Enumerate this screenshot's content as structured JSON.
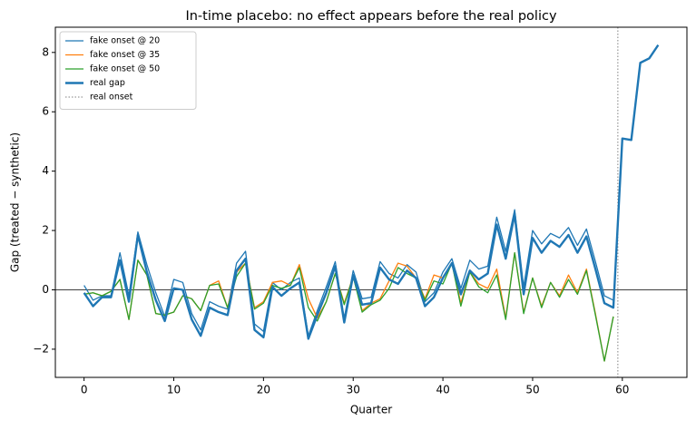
{
  "chart_data": {
    "type": "line",
    "title": "In-time placebo: no effect appears before the real policy",
    "x_label": "Quarter",
    "y_label": "Gap (treated − synthetic)",
    "xlim": [
      -3.2,
      67.2
    ],
    "ylim": [
      -2.95,
      8.85
    ],
    "xticks": [
      0,
      10,
      20,
      30,
      40,
      50,
      60
    ],
    "yticks": [
      {
        "value": -2,
        "label": "−2"
      },
      0,
      2,
      4,
      6,
      8
    ],
    "hline": 0,
    "legend": "upper left",
    "series": [
      {
        "name": "fake onset @ 20",
        "color": "#1f77b4",
        "linewidth": 1.3,
        "x": [
          0,
          1,
          2,
          3,
          4,
          5,
          6,
          7,
          8,
          9,
          10,
          11,
          12,
          13,
          14,
          15,
          16,
          17,
          18,
          19,
          20,
          21,
          22,
          23,
          24,
          25,
          26,
          27,
          28,
          29,
          30,
          31,
          32,
          33,
          34,
          35,
          36,
          37,
          38,
          39,
          40,
          41,
          42,
          43,
          44,
          45,
          46,
          47,
          48,
          49,
          50,
          51,
          52,
          53,
          54,
          55,
          56,
          57,
          58,
          59
        ],
        "values": [
          0.15,
          -0.35,
          -0.2,
          -0.2,
          1.25,
          -0.2,
          1.95,
          0.85,
          -0.1,
          -0.9,
          0.35,
          0.25,
          -0.8,
          -1.35,
          -0.4,
          -0.55,
          -0.65,
          0.9,
          1.3,
          -1.15,
          -1.4,
          0.25,
          0.0,
          0.25,
          0.4,
          -1.55,
          -0.7,
          0.1,
          0.95,
          -0.95,
          0.65,
          -0.3,
          -0.25,
          0.95,
          0.55,
          0.4,
          0.85,
          0.6,
          -0.4,
          -0.1,
          0.6,
          1.05,
          0.05,
          1.0,
          0.7,
          0.8,
          2.45,
          1.3,
          2.7,
          0.1,
          2.0,
          1.55,
          1.9,
          1.75,
          2.1,
          1.5,
          2.05,
          0.95,
          -0.2,
          -0.35
        ]
      },
      {
        "name": "fake onset @ 35",
        "color": "#ff7f0e",
        "linewidth": 1.3,
        "x": [
          0,
          1,
          2,
          3,
          4,
          5,
          6,
          7,
          8,
          9,
          10,
          11,
          12,
          13,
          14,
          15,
          16,
          17,
          18,
          19,
          20,
          21,
          22,
          23,
          24,
          25,
          26,
          27,
          28,
          29,
          30,
          31,
          32,
          33,
          34,
          35,
          36,
          37,
          38,
          39,
          40,
          41,
          42,
          43,
          44,
          45,
          46,
          47,
          48,
          49,
          50,
          51,
          52,
          53,
          54,
          55,
          56,
          57,
          58,
          59
        ],
        "values": [
          -0.15,
          -0.1,
          -0.2,
          -0.05,
          0.35,
          -1.0,
          1.0,
          0.5,
          -0.8,
          -0.85,
          -0.75,
          -0.2,
          -0.3,
          -0.7,
          0.15,
          0.3,
          -0.6,
          0.6,
          0.9,
          -0.6,
          -0.4,
          0.25,
          0.3,
          0.15,
          0.85,
          -0.3,
          -0.95,
          -0.4,
          0.55,
          -0.45,
          0.45,
          -0.7,
          -0.45,
          -0.3,
          0.3,
          0.9,
          0.8,
          0.4,
          -0.3,
          0.5,
          0.4,
          0.9,
          -0.45,
          0.6,
          0.2,
          0.05,
          0.7,
          -0.95,
          1.25,
          -0.75,
          0.4,
          -0.55,
          0.25,
          -0.2,
          0.5,
          -0.1,
          0.7,
          -0.8,
          -2.4,
          -0.9
        ]
      },
      {
        "name": "fake onset @ 50",
        "color": "#2ca02c",
        "linewidth": 1.3,
        "x": [
          0,
          1,
          2,
          3,
          4,
          5,
          6,
          7,
          8,
          9,
          10,
          11,
          12,
          13,
          14,
          15,
          16,
          17,
          18,
          19,
          20,
          21,
          22,
          23,
          24,
          25,
          26,
          27,
          28,
          29,
          30,
          31,
          32,
          33,
          34,
          35,
          36,
          37,
          38,
          39,
          40,
          41,
          42,
          43,
          44,
          45,
          46,
          47,
          48,
          49,
          50,
          51,
          52,
          53,
          54,
          55,
          56,
          57,
          58,
          59
        ],
        "values": [
          -0.15,
          -0.1,
          -0.2,
          -0.05,
          0.35,
          -1.0,
          1.0,
          0.5,
          -0.8,
          -0.85,
          -0.75,
          -0.2,
          -0.3,
          -0.7,
          0.15,
          0.2,
          -0.6,
          0.45,
          0.9,
          -0.65,
          -0.45,
          0.15,
          0.05,
          0.15,
          0.75,
          -0.6,
          -1.05,
          -0.4,
          0.55,
          -0.5,
          0.45,
          -0.75,
          -0.5,
          -0.35,
          0.05,
          0.75,
          0.55,
          0.4,
          -0.35,
          0.3,
          0.2,
          0.9,
          -0.55,
          0.6,
          0.1,
          -0.1,
          0.5,
          -1.0,
          1.25,
          -0.8,
          0.4,
          -0.6,
          0.25,
          -0.25,
          0.35,
          -0.15,
          0.65,
          -0.85,
          -2.4,
          -0.9
        ]
      },
      {
        "name": "real gap",
        "color": "#1f77b4",
        "linewidth": 2.4,
        "x": [
          0,
          1,
          2,
          3,
          4,
          5,
          6,
          7,
          8,
          9,
          10,
          11,
          12,
          13,
          14,
          15,
          16,
          17,
          18,
          19,
          20,
          21,
          22,
          23,
          24,
          25,
          26,
          27,
          28,
          29,
          30,
          31,
          32,
          33,
          34,
          35,
          36,
          37,
          38,
          39,
          40,
          41,
          42,
          43,
          44,
          45,
          46,
          47,
          48,
          49,
          50,
          51,
          52,
          53,
          54,
          55,
          56,
          57,
          58,
          59,
          60,
          61,
          62,
          63,
          64
        ],
        "values": [
          -0.1,
          -0.55,
          -0.25,
          -0.25,
          1.0,
          -0.4,
          1.85,
          0.6,
          -0.35,
          -1.05,
          0.05,
          0.0,
          -1.0,
          -1.55,
          -0.6,
          -0.75,
          -0.85,
          0.65,
          1.05,
          -1.35,
          -1.6,
          0.1,
          -0.2,
          0.05,
          0.25,
          -1.65,
          -0.85,
          -0.1,
          0.8,
          -1.1,
          0.5,
          -0.5,
          -0.45,
          0.75,
          0.35,
          0.2,
          0.65,
          0.4,
          -0.55,
          -0.25,
          0.4,
          0.9,
          -0.15,
          0.65,
          0.35,
          0.55,
          2.2,
          1.05,
          2.55,
          -0.15,
          1.75,
          1.25,
          1.65,
          1.45,
          1.85,
          1.25,
          1.8,
          0.7,
          -0.45,
          -0.6,
          5.1,
          5.05,
          7.65,
          7.8,
          8.25
        ]
      }
    ],
    "vlines": [
      {
        "name": "real onset",
        "x": 59.5,
        "color": "#808080"
      }
    ]
  }
}
